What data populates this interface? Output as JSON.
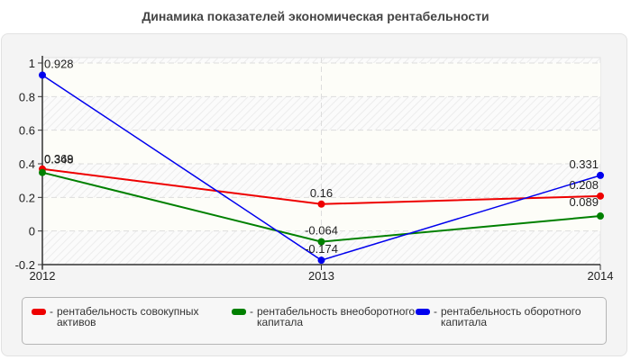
{
  "title": "Динамика показателей экономическая рентабельности",
  "colors": {
    "red": "#ee0000",
    "green": "#008000",
    "blue": "#0000ee",
    "panel_bg": "#f4f4f4",
    "grid": "#dddddd"
  },
  "chart_data": {
    "type": "line",
    "title": "Динамика показателей экономическая рентабельности",
    "xlabel": "",
    "ylabel": "",
    "categories": [
      "2012",
      "2013",
      "2014"
    ],
    "ylim": [
      -0.2,
      1
    ],
    "yticks": [
      "-0.2",
      "0",
      "0.2",
      "0.4",
      "0.6",
      "0.8",
      "1"
    ],
    "grid": true,
    "legend_position": "bottom",
    "series": [
      {
        "name": "рентабельность совокупных активов",
        "color": "#ee0000",
        "values": [
          0.369,
          0.16,
          0.208
        ],
        "labels": [
          "0.369",
          "0.16",
          "0.208"
        ]
      },
      {
        "name": "рентабельность внеоборотного капитала",
        "color": "#008000",
        "values": [
          0.348,
          -0.064,
          0.089
        ],
        "labels": [
          "0.348",
          "-0.064",
          "0.089"
        ]
      },
      {
        "name": "рентабельность оборотного капитала",
        "color": "#0000ee",
        "values": [
          0.928,
          -0.174,
          0.331
        ],
        "labels": [
          "0.928",
          "-0.174",
          "0.331"
        ]
      }
    ]
  },
  "legend": {
    "dash": "-",
    "items": [
      {
        "label": "рентабельность совокупных активов"
      },
      {
        "label": "рентабельность внеоборотного капитала"
      },
      {
        "label": "рентабельность оборотного капитала"
      }
    ]
  }
}
